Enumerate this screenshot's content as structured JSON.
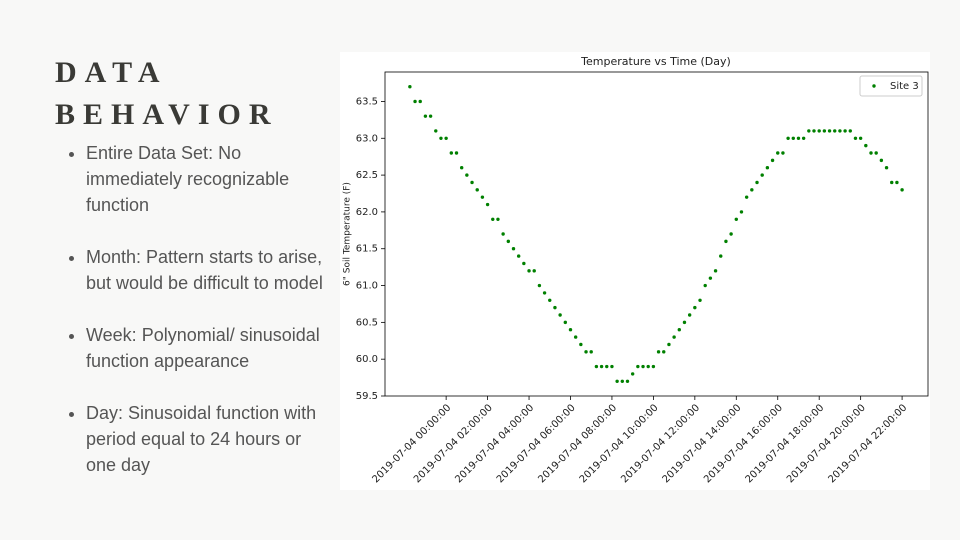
{
  "slide": {
    "title": [
      "DATA",
      "BEHAVIOR"
    ],
    "bullets": [
      "Entire Data Set: No immediately recognizable function",
      "Month: Pattern starts to arise, but would be difficult to model",
      "Week: Polynomial/ sinusoidal function appearance",
      "Day: Sinusoidal function with period equal to 24 hours or one day"
    ]
  },
  "chart_data": {
    "type": "scatter",
    "title": "Temperature vs Time (Day)",
    "ylabel": "6\" Soil Temperature (F)",
    "x": [
      "2019-07-03 22:15:00",
      "2019-07-03 22:30:00",
      "2019-07-03 22:45:00",
      "2019-07-03 23:00:00",
      "2019-07-03 23:15:00",
      "2019-07-03 23:30:00",
      "2019-07-03 23:45:00",
      "2019-07-04 00:00:00",
      "2019-07-04 00:15:00",
      "2019-07-04 00:30:00",
      "2019-07-04 00:45:00",
      "2019-07-04 01:00:00",
      "2019-07-04 01:15:00",
      "2019-07-04 01:30:00",
      "2019-07-04 01:45:00",
      "2019-07-04 02:00:00",
      "2019-07-04 02:15:00",
      "2019-07-04 02:30:00",
      "2019-07-04 02:45:00",
      "2019-07-04 03:00:00",
      "2019-07-04 03:15:00",
      "2019-07-04 03:30:00",
      "2019-07-04 03:45:00",
      "2019-07-04 04:00:00",
      "2019-07-04 04:15:00",
      "2019-07-04 04:30:00",
      "2019-07-04 04:45:00",
      "2019-07-04 05:00:00",
      "2019-07-04 05:15:00",
      "2019-07-04 05:30:00",
      "2019-07-04 05:45:00",
      "2019-07-04 06:00:00",
      "2019-07-04 06:15:00",
      "2019-07-04 06:30:00",
      "2019-07-04 06:45:00",
      "2019-07-04 07:00:00",
      "2019-07-04 07:15:00",
      "2019-07-04 07:30:00",
      "2019-07-04 07:45:00",
      "2019-07-04 08:00:00",
      "2019-07-04 08:15:00",
      "2019-07-04 08:30:00",
      "2019-07-04 08:45:00",
      "2019-07-04 09:00:00",
      "2019-07-04 09:15:00",
      "2019-07-04 09:30:00",
      "2019-07-04 09:45:00",
      "2019-07-04 10:00:00",
      "2019-07-04 10:15:00",
      "2019-07-04 10:30:00",
      "2019-07-04 10:45:00",
      "2019-07-04 11:00:00",
      "2019-07-04 11:15:00",
      "2019-07-04 11:30:00",
      "2019-07-04 11:45:00",
      "2019-07-04 12:00:00",
      "2019-07-04 12:15:00",
      "2019-07-04 12:30:00",
      "2019-07-04 12:45:00",
      "2019-07-04 13:00:00",
      "2019-07-04 13:15:00",
      "2019-07-04 13:30:00",
      "2019-07-04 13:45:00",
      "2019-07-04 14:00:00",
      "2019-07-04 14:15:00",
      "2019-07-04 14:30:00",
      "2019-07-04 14:45:00",
      "2019-07-04 15:00:00",
      "2019-07-04 15:15:00",
      "2019-07-04 15:30:00",
      "2019-07-04 15:45:00",
      "2019-07-04 16:00:00",
      "2019-07-04 16:15:00",
      "2019-07-04 16:30:00",
      "2019-07-04 16:45:00",
      "2019-07-04 17:00:00",
      "2019-07-04 17:15:00",
      "2019-07-04 17:30:00",
      "2019-07-04 17:45:00",
      "2019-07-04 18:00:00",
      "2019-07-04 18:15:00",
      "2019-07-04 18:30:00",
      "2019-07-04 18:45:00",
      "2019-07-04 19:00:00",
      "2019-07-04 19:15:00",
      "2019-07-04 19:30:00",
      "2019-07-04 19:45:00",
      "2019-07-04 20:00:00",
      "2019-07-04 20:15:00",
      "2019-07-04 20:30:00",
      "2019-07-04 20:45:00",
      "2019-07-04 21:00:00",
      "2019-07-04 21:15:00",
      "2019-07-04 21:30:00",
      "2019-07-04 21:45:00",
      "2019-07-04 22:00:00"
    ],
    "series": [
      {
        "name": "Site 3",
        "color": "#008000",
        "values": [
          63.7,
          63.5,
          63.5,
          63.3,
          63.3,
          63.1,
          63.0,
          63.0,
          62.8,
          62.8,
          62.6,
          62.5,
          62.4,
          62.3,
          62.2,
          62.1,
          61.9,
          61.9,
          61.7,
          61.6,
          61.5,
          61.4,
          61.3,
          61.2,
          61.2,
          61.0,
          60.9,
          60.8,
          60.7,
          60.6,
          60.5,
          60.4,
          60.3,
          60.2,
          60.1,
          60.1,
          59.9,
          59.9,
          59.9,
          59.9,
          59.7,
          59.7,
          59.7,
          59.8,
          59.9,
          59.9,
          59.9,
          59.9,
          60.1,
          60.1,
          60.2,
          60.3,
          60.4,
          60.5,
          60.6,
          60.7,
          60.8,
          61.0,
          61.1,
          61.2,
          61.4,
          61.6,
          61.7,
          61.9,
          62.0,
          62.2,
          62.3,
          62.4,
          62.5,
          62.6,
          62.7,
          62.8,
          62.8,
          63.0,
          63.0,
          63.0,
          63.0,
          63.1,
          63.1,
          63.1,
          63.1,
          63.1,
          63.1,
          63.1,
          63.1,
          63.1,
          63.0,
          63.0,
          62.9,
          62.8,
          62.8,
          62.7,
          62.6,
          62.4,
          62.4,
          62.3
        ]
      }
    ],
    "xlim": [
      "2019-07-03 21:03:00",
      "2019-07-04 23:15:00"
    ],
    "xticks": [
      "2019-07-04 00:00:00",
      "2019-07-04 02:00:00",
      "2019-07-04 04:00:00",
      "2019-07-04 06:00:00",
      "2019-07-04 08:00:00",
      "2019-07-04 10:00:00",
      "2019-07-04 12:00:00",
      "2019-07-04 14:00:00",
      "2019-07-04 16:00:00",
      "2019-07-04 18:00:00",
      "2019-07-04 20:00:00",
      "2019-07-04 22:00:00"
    ],
    "ylim": [
      59.5,
      63.9
    ],
    "yticks": [
      59.5,
      {
        "value": 60,
        "label": "60.0"
      },
      60.5,
      {
        "value": 61,
        "label": "61.0"
      },
      61.5,
      {
        "value": 62,
        "label": "62.0"
      },
      62.5,
      {
        "value": 63,
        "label": "63.0"
      },
      63.5
    ],
    "legend": "upper right"
  }
}
